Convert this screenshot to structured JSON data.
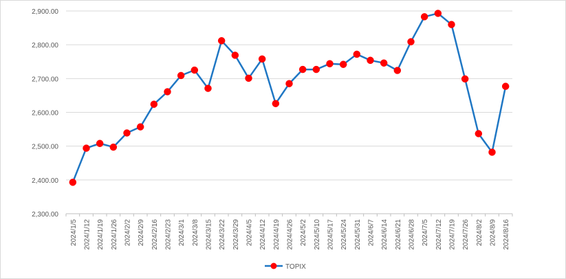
{
  "chart_data": {
    "type": "line",
    "title": "",
    "xlabel": "",
    "ylabel": "",
    "categories": [
      "2024/1/5",
      "2024/1/12",
      "2024/1/19",
      "2024/1/26",
      "2024/2/2",
      "2024/2/9",
      "2024/2/16",
      "2024/2/23",
      "2024/3/1",
      "2024/3/8",
      "2024/3/15",
      "2024/3/22",
      "2024/3/29",
      "2024/4/5",
      "2024/4/12",
      "2024/4/19",
      "2024/4/26",
      "2024/5/2",
      "2024/5/10",
      "2024/5/17",
      "2024/5/24",
      "2024/5/31",
      "2024/6/7",
      "2024/6/14",
      "2024/6/21",
      "2024/6/28",
      "2024/7/5",
      "2024/7/12",
      "2024/7/19",
      "2024/7/26",
      "2024/8/2",
      "2024/8/9",
      "2024/8/16"
    ],
    "series": [
      {
        "name": "TOPIX",
        "values": [
          2393,
          2494,
          2508,
          2497,
          2539,
          2557,
          2624,
          2661,
          2709,
          2725,
          2671,
          2812,
          2769,
          2701,
          2758,
          2626,
          2685,
          2727,
          2727,
          2744,
          2742,
          2772,
          2754,
          2746,
          2724,
          2809,
          2883,
          2893,
          2860,
          2699,
          2537,
          2482,
          2677
        ],
        "line_color": "#1f77c4",
        "marker_color": "#ff0000"
      }
    ],
    "ylim": [
      2300,
      2900
    ],
    "yticks": [
      "2,300.00",
      "2,400.00",
      "2,500.00",
      "2,600.00",
      "2,700.00",
      "2,800.00",
      "2,900.00"
    ],
    "ytick_values": [
      2300,
      2400,
      2500,
      2600,
      2700,
      2800,
      2900
    ],
    "grid": true,
    "legend_placement": "bottom-center"
  }
}
